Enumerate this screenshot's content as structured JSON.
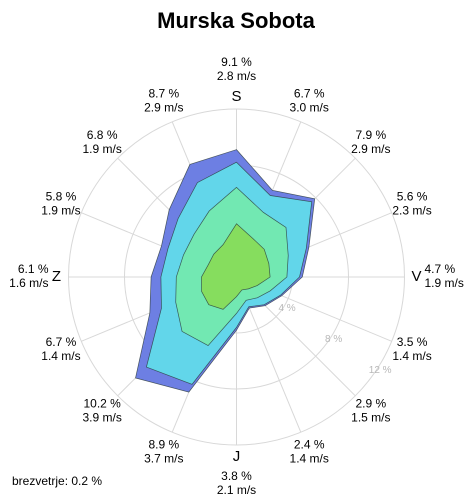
{
  "chart_data": {
    "type": "windrose",
    "title": "Murska Sobota",
    "directions": [
      {
        "percent": "9.1 %",
        "speed": "2.8 m/s",
        "cardinal": "S"
      },
      {
        "percent": "6.7 %",
        "speed": "3.0 m/s"
      },
      {
        "percent": "7.9 %",
        "speed": "2.9 m/s"
      },
      {
        "percent": "5.6 %",
        "speed": "2.3 m/s"
      },
      {
        "percent": "4.7 %",
        "speed": "1.9 m/s",
        "cardinal": "V"
      },
      {
        "percent": "3.5 %",
        "speed": "1.4 m/s"
      },
      {
        "percent": "2.9 %",
        "speed": "1.5 m/s"
      },
      {
        "percent": "2.4 %",
        "speed": "1.4 m/s"
      },
      {
        "percent": "3.8 %",
        "speed": "2.1 m/s",
        "cardinal": "J"
      },
      {
        "percent": "8.9 %",
        "speed": "3.7 m/s"
      },
      {
        "percent": "10.2 %",
        "speed": "3.9 m/s"
      },
      {
        "percent": "6.7 %",
        "speed": "1.4 m/s"
      },
      {
        "percent": "6.1 %",
        "speed": "1.6 m/s",
        "cardinal": "Z"
      },
      {
        "percent": "5.8 %",
        "speed": "1.9 m/s"
      },
      {
        "percent": "6.8 %",
        "speed": "1.9 m/s"
      },
      {
        "percent": "8.7 %",
        "speed": "2.9 m/s"
      }
    ],
    "series": [
      {
        "color": "#86dd5e",
        "values": [
          3.8,
          3.0,
          2.8,
          2.5,
          2.4,
          1.6,
          1.2,
          1.0,
          1.4,
          2.5,
          2.8,
          2.7,
          2.5,
          2.2,
          2.3,
          2.5
        ]
      },
      {
        "color": "#72e8b2",
        "values": [
          2.6,
          2.0,
          2.2,
          1.5,
          1.2,
          1.0,
          0.9,
          0.8,
          1.2,
          2.8,
          2.7,
          2.0,
          1.8,
          1.9,
          2.0,
          2.6
        ]
      },
      {
        "color": "#62d6ea",
        "values": [
          1.8,
          1.3,
          2.6,
          1.4,
          0.9,
          0.8,
          0.7,
          0.5,
          1.0,
          3.0,
          3.6,
          1.1,
          1.1,
          1.2,
          1.6,
          2.2
        ]
      },
      {
        "color": "#6d7fe3",
        "values": [
          0.9,
          0.4,
          0.3,
          0.2,
          0.2,
          0.1,
          0.1,
          0.1,
          0.2,
          0.6,
          1.1,
          0.9,
          0.7,
          0.5,
          0.9,
          1.4
        ]
      }
    ],
    "rlim": [
      0,
      12
    ],
    "rticks": [
      {
        "value": 4,
        "label": "4 %"
      },
      {
        "value": 8,
        "label": "8 %"
      },
      {
        "value": 12,
        "label": "12 %"
      }
    ],
    "calm": "brezvetrje: 0.2 %"
  }
}
